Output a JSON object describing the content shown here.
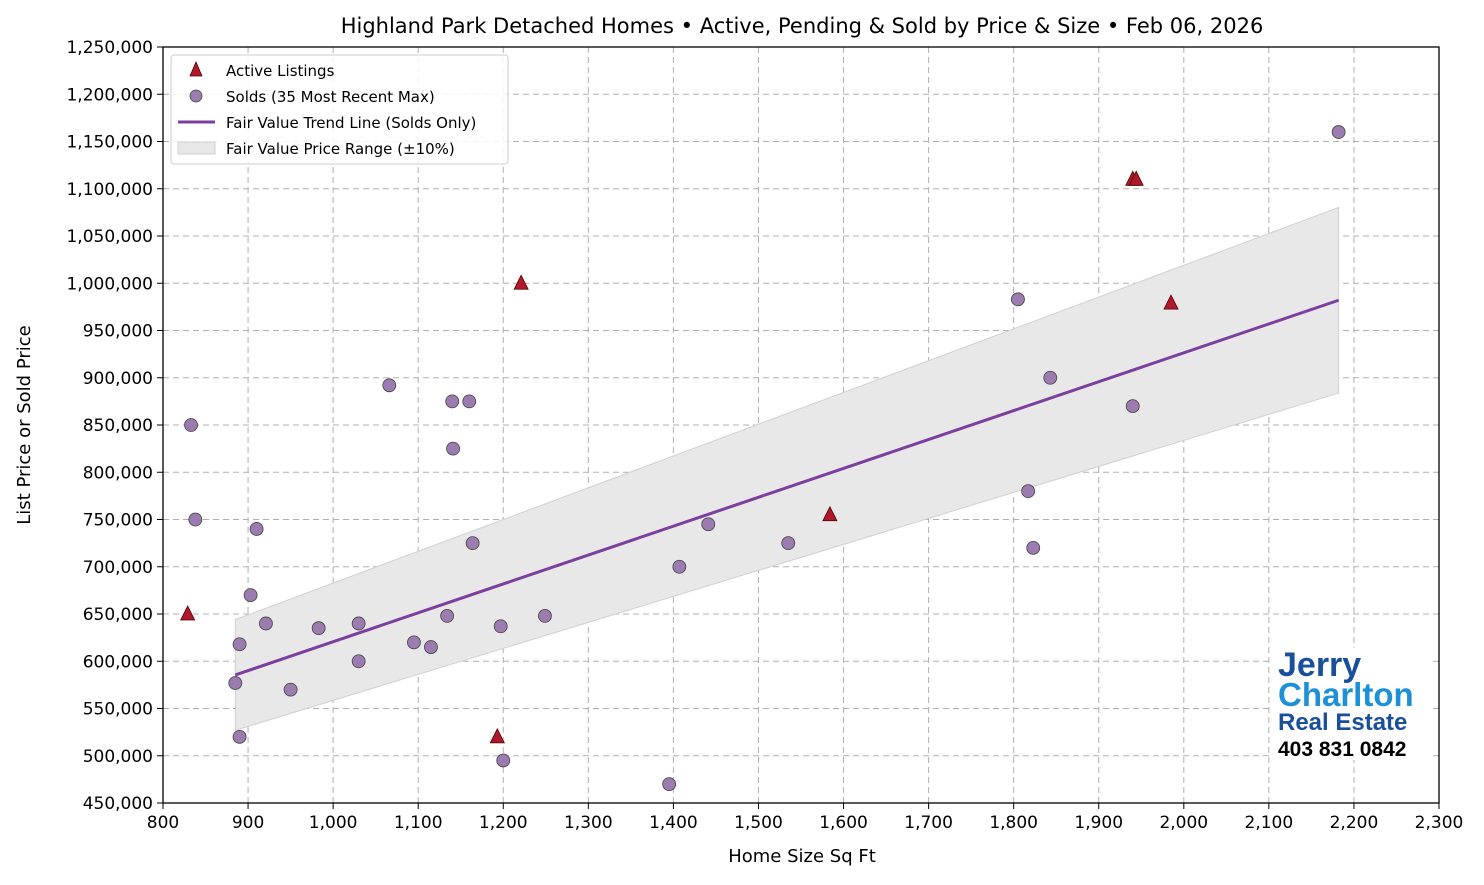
{
  "chart_data": {
    "type": "scatter",
    "title": "Highland Park Detached Homes • Active, Pending & Sold by Price & Size • Feb 06, 2026",
    "xlabel": "Home Size Sq Ft",
    "ylabel": "List Price or Sold Price",
    "xlim": [
      800,
      2300
    ],
    "ylim": [
      450000,
      1250000
    ],
    "xticks": [
      800,
      900,
      1000,
      1100,
      1200,
      1300,
      1400,
      1500,
      1600,
      1700,
      1800,
      1900,
      2000,
      2100,
      2200,
      2300
    ],
    "xtick_labels": [
      "800",
      "900",
      "1,000",
      "1,100",
      "1,200",
      "1,300",
      "1,400",
      "1,500",
      "1,600",
      "1,700",
      "1,800",
      "1,900",
      "2,000",
      "2,100",
      "2,200",
      "2,300"
    ],
    "yticks": [
      450000,
      500000,
      550000,
      600000,
      650000,
      700000,
      750000,
      800000,
      850000,
      900000,
      950000,
      1000000,
      1050000,
      1100000,
      1150000,
      1200000,
      1250000
    ],
    "ytick_labels": [
      "450,000",
      "500,000",
      "550,000",
      "600,000",
      "650,000",
      "700,000",
      "750,000",
      "800,000",
      "850,000",
      "900,000",
      "950,000",
      "1,000,000",
      "1,050,000",
      "1,100,000",
      "1,150,000",
      "1,200,000",
      "1,250,000"
    ],
    "grid": true,
    "legend_position": "top-left",
    "series": [
      {
        "name": "Active Listings",
        "marker": "triangle",
        "color": "#b2182b",
        "points": [
          [
            829,
            650000
          ],
          [
            1193,
            520000
          ],
          [
            1221,
            1000000
          ],
          [
            1584,
            755000
          ],
          [
            1940,
            1110000
          ],
          [
            1944,
            1110000
          ],
          [
            1985,
            979000
          ]
        ]
      },
      {
        "name": "Solds (35 Most Recent Max)",
        "marker": "circle",
        "color": "#9b7bb0",
        "points": [
          [
            833,
            850000
          ],
          [
            838,
            750000
          ],
          [
            885,
            577000
          ],
          [
            890,
            520000
          ],
          [
            890,
            618000
          ],
          [
            903,
            670000
          ],
          [
            910,
            740000
          ],
          [
            921,
            640000
          ],
          [
            950,
            570000
          ],
          [
            983,
            635000
          ],
          [
            1030,
            640000
          ],
          [
            1030,
            600000
          ],
          [
            1066,
            892000
          ],
          [
            1095,
            620000
          ],
          [
            1115,
            615000
          ],
          [
            1134,
            648000
          ],
          [
            1140,
            875000
          ],
          [
            1160,
            875000
          ],
          [
            1141,
            825000
          ],
          [
            1164,
            725000
          ],
          [
            1197,
            637000
          ],
          [
            1200,
            495000
          ],
          [
            1249,
            648000
          ],
          [
            1395,
            470000
          ],
          [
            1407,
            700000
          ],
          [
            1441,
            745000
          ],
          [
            1535,
            725000
          ],
          [
            1805,
            983000
          ],
          [
            1843,
            900000
          ],
          [
            1817,
            780000
          ],
          [
            1823,
            720000
          ],
          [
            1940,
            870000
          ],
          [
            2182,
            1160000
          ]
        ]
      },
      {
        "name": "Fair Value Trend Line (Solds Only)",
        "type": "line",
        "color": "#7b3f9e",
        "points": [
          [
            885,
            585500
          ],
          [
            2182,
            982000
          ]
        ]
      },
      {
        "name": "Fair Value Price Range (±10%)",
        "type": "band",
        "color": "#e8e8e8",
        "band_pct": 10
      }
    ]
  },
  "logo": {
    "line1": "Jerry",
    "line2": "Charlton",
    "line3": "Real Estate",
    "phone": "403 831 0842"
  }
}
